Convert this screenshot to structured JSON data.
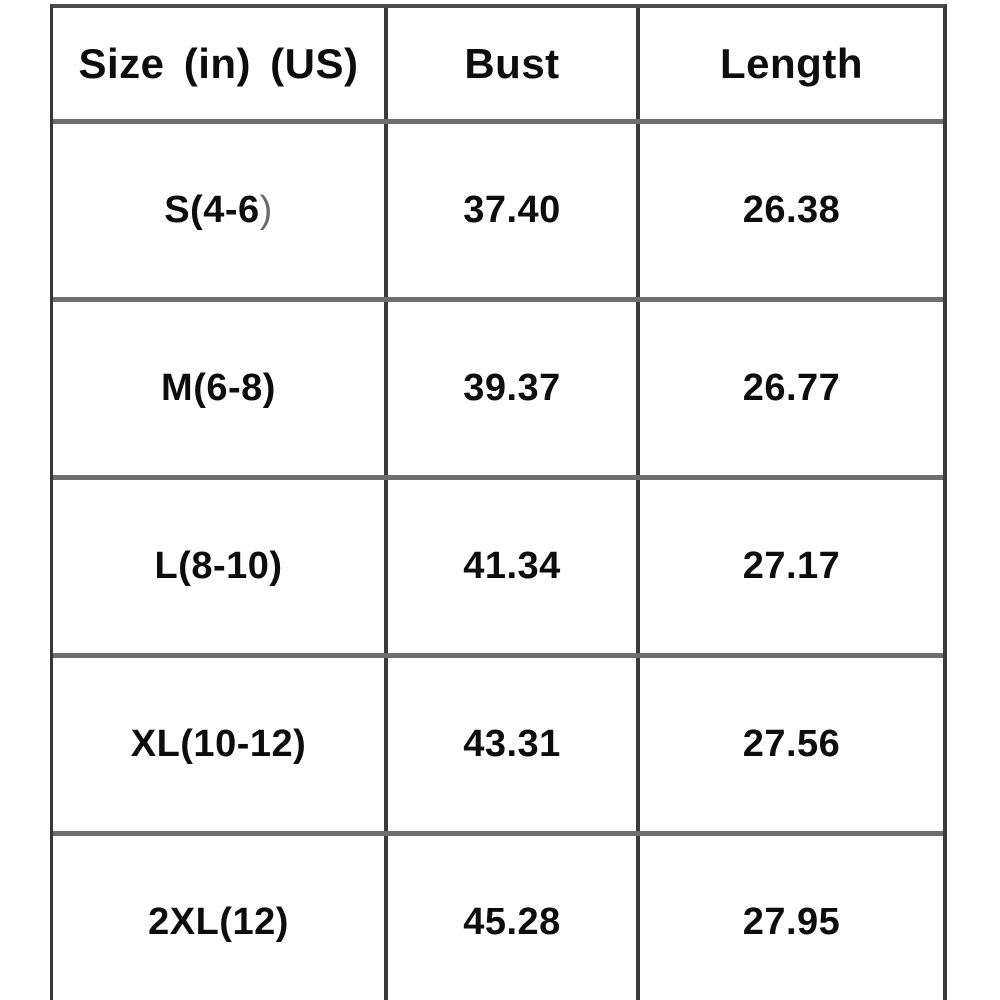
{
  "chart_data": {
    "type": "table",
    "columns": [
      "Size (in) (US)",
      "Bust",
      "Length"
    ],
    "rows": [
      {
        "size": "S(4-6)",
        "size_main": "S(4-6",
        "size_tail": ")",
        "bust": "37.40",
        "length": "26.38"
      },
      {
        "size": "M(6-8)",
        "size_main": "M(6-8)",
        "size_tail": "",
        "bust": "39.37",
        "length": "26.77"
      },
      {
        "size": "L(8-10)",
        "size_main": "L(8-10)",
        "size_tail": "",
        "bust": "41.34",
        "length": "27.17"
      },
      {
        "size": "XL(10-12)",
        "size_main": "XL(10-12)",
        "size_tail": "",
        "bust": "43.31",
        "length": "27.56"
      },
      {
        "size": "2XL(12)",
        "size_main": "2XL(12)",
        "size_tail": "",
        "bust": "45.28",
        "length": "27.95"
      }
    ],
    "layout": {
      "grid": "on",
      "header_position": "top",
      "text_color": "#0d0d0d",
      "rule_color_horizontal": "#6e6e6e",
      "rule_color_vertical": "#3a3a3a",
      "background": "#ffffff"
    }
  }
}
